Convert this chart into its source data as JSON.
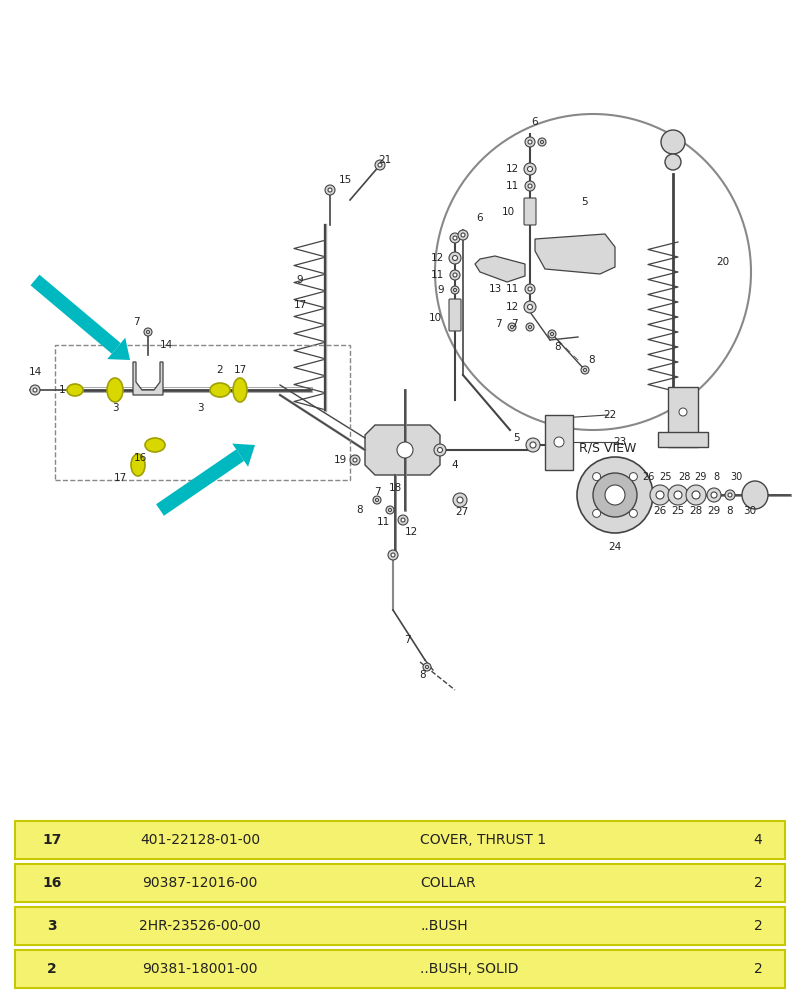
{
  "bg_color": "#ffffff",
  "fig_width": 8.0,
  "fig_height": 10.0,
  "table_rows": [
    {
      "ref": "2",
      "part_num": "90381-18001-00",
      "description": "..BUSH, SOLID",
      "qty": "2"
    },
    {
      "ref": "3",
      "part_num": "2HR-23526-00-00",
      "description": "..BUSH",
      "qty": "2"
    },
    {
      "ref": "16",
      "part_num": "90387-12016-00",
      "description": "COLLAR",
      "qty": "2"
    },
    {
      "ref": "17",
      "part_num": "401-22128-01-00",
      "description": "COVER, THRUST 1",
      "qty": "4"
    }
  ],
  "table_bg": "#f5f270",
  "table_border": "#c8c800",
  "arrow_color": "#00b8c0",
  "line_color": "#444444",
  "yellow_color": "#d8d800",
  "yellow_ec": "#a0a000",
  "text_color": "#222222",
  "rs_view_label": "R/S VIEW",
  "circle_ec": "#888888",
  "part_fill": "#d8d8d8",
  "part_ec": "#444444"
}
